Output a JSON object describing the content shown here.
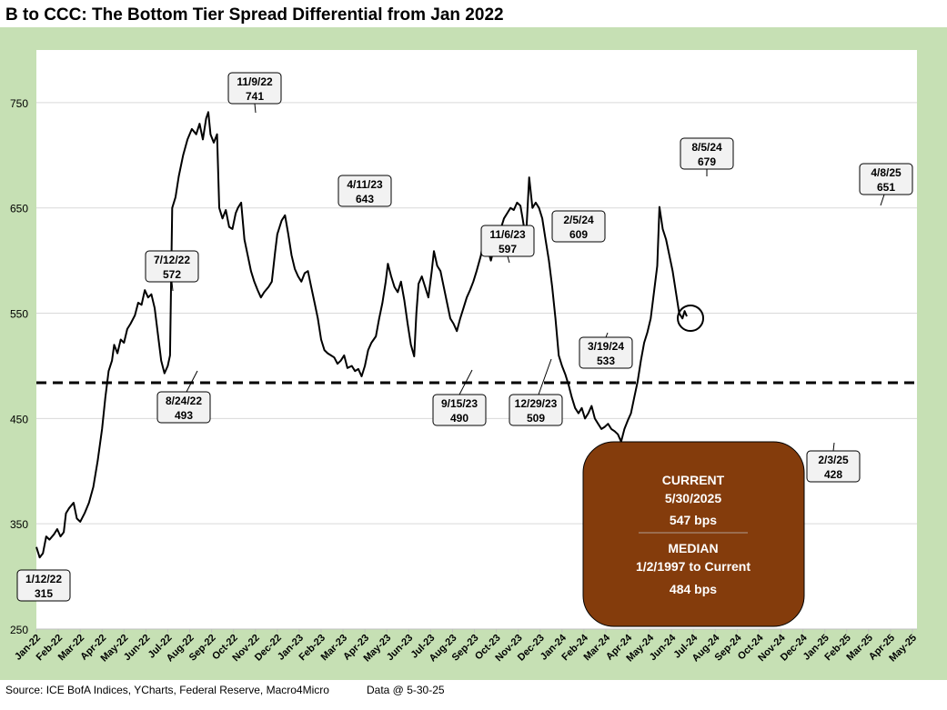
{
  "title": "B to CCC: The Bottom Tier Spread Differential from Jan 2022",
  "footer": {
    "source": "Source: ICE BofA Indices, YCharts, Federal Reserve, Macro4Micro",
    "data_date": "Data @ 5-30-25"
  },
  "info_box": {
    "current_label": "CURRENT",
    "current_date": "5/30/2025",
    "current_value": "547 bps",
    "median_label": "MEDIAN",
    "median_range": "1/2/1997 to Current",
    "median_value": "484 bps"
  },
  "colors": {
    "frame": "#c6e0b4",
    "line": "#000000",
    "grid": "#d9d9d9",
    "box": "#843c0c",
    "callout": "#f2f2f2"
  },
  "chart_data": {
    "type": "line",
    "title": "B to CCC: The Bottom Tier Spread Differential from Jan 2022",
    "xlabel": "",
    "ylabel": "",
    "ylim": [
      250,
      800
    ],
    "y_ticks": [
      250,
      350,
      450,
      550,
      650,
      750
    ],
    "x_ticks": [
      "Jan-22",
      "Feb-22",
      "Mar-22",
      "Apr-22",
      "May-22",
      "Jun-22",
      "Jul-22",
      "Aug-22",
      "Sep-22",
      "Oct-22",
      "Nov-22",
      "Dec-22",
      "Jan-23",
      "Feb-23",
      "Mar-23",
      "Apr-23",
      "May-23",
      "Jun-23",
      "Jul-23",
      "Aug-23",
      "Sep-23",
      "Oct-23",
      "Nov-23",
      "Dec-23",
      "Jan-24",
      "Feb-24",
      "Mar-24",
      "Apr-24",
      "May-24",
      "Jun-24",
      "Jul-24",
      "Aug-24",
      "Sep-24",
      "Oct-24",
      "Nov-24",
      "Dec-24",
      "Jan-25",
      "Feb-25",
      "Mar-25",
      "Apr-25",
      "May-25"
    ],
    "median": 484,
    "current": {
      "date": "5/30/2025",
      "value": 547
    },
    "series": [
      {
        "name": "B to CCC spread differential (bps)",
        "points": [
          [
            0.0,
            328
          ],
          [
            0.15,
            318
          ],
          [
            0.3,
            322
          ],
          [
            0.45,
            338
          ],
          [
            0.6,
            335
          ],
          [
            0.8,
            340
          ],
          [
            0.95,
            345
          ],
          [
            1.1,
            338
          ],
          [
            1.25,
            342
          ],
          [
            1.35,
            360
          ],
          [
            1.5,
            365
          ],
          [
            1.7,
            370
          ],
          [
            1.85,
            355
          ],
          [
            2.0,
            352
          ],
          [
            2.2,
            360
          ],
          [
            2.4,
            370
          ],
          [
            2.6,
            385
          ],
          [
            2.8,
            410
          ],
          [
            3.0,
            440
          ],
          [
            3.15,
            470
          ],
          [
            3.3,
            495
          ],
          [
            3.45,
            505
          ],
          [
            3.55,
            520
          ],
          [
            3.7,
            512
          ],
          [
            3.85,
            525
          ],
          [
            4.0,
            522
          ],
          [
            4.15,
            535
          ],
          [
            4.3,
            540
          ],
          [
            4.5,
            548
          ],
          [
            4.65,
            560
          ],
          [
            4.8,
            558
          ],
          [
            4.95,
            572
          ],
          [
            5.1,
            565
          ],
          [
            5.25,
            568
          ],
          [
            5.4,
            555
          ],
          [
            5.55,
            530
          ],
          [
            5.7,
            505
          ],
          [
            5.85,
            493
          ],
          [
            6.0,
            500
          ],
          [
            6.1,
            510
          ],
          [
            6.2,
            650
          ],
          [
            6.35,
            660
          ],
          [
            6.5,
            680
          ],
          [
            6.7,
            700
          ],
          [
            6.9,
            715
          ],
          [
            7.1,
            725
          ],
          [
            7.3,
            720
          ],
          [
            7.45,
            730
          ],
          [
            7.6,
            715
          ],
          [
            7.75,
            735
          ],
          [
            7.85,
            741
          ],
          [
            7.95,
            720
          ],
          [
            8.1,
            712
          ],
          [
            8.25,
            720
          ],
          [
            8.35,
            650
          ],
          [
            8.5,
            640
          ],
          [
            8.65,
            648
          ],
          [
            8.8,
            632
          ],
          [
            8.95,
            630
          ],
          [
            9.1,
            645
          ],
          [
            9.2,
            650
          ],
          [
            9.35,
            655
          ],
          [
            9.5,
            620
          ],
          [
            9.65,
            605
          ],
          [
            9.8,
            590
          ],
          [
            9.95,
            580
          ],
          [
            10.1,
            572
          ],
          [
            10.25,
            565
          ],
          [
            10.4,
            570
          ],
          [
            10.6,
            575
          ],
          [
            10.75,
            580
          ],
          [
            10.9,
            608
          ],
          [
            11.0,
            625
          ],
          [
            11.2,
            638
          ],
          [
            11.35,
            643
          ],
          [
            11.5,
            625
          ],
          [
            11.65,
            605
          ],
          [
            11.8,
            592
          ],
          [
            11.95,
            585
          ],
          [
            12.1,
            580
          ],
          [
            12.25,
            588
          ],
          [
            12.4,
            590
          ],
          [
            12.55,
            575
          ],
          [
            12.7,
            560
          ],
          [
            12.85,
            545
          ],
          [
            13.0,
            525
          ],
          [
            13.15,
            515
          ],
          [
            13.3,
            512
          ],
          [
            13.45,
            510
          ],
          [
            13.6,
            508
          ],
          [
            13.75,
            502
          ],
          [
            13.9,
            505
          ],
          [
            14.05,
            510
          ],
          [
            14.2,
            498
          ],
          [
            14.4,
            500
          ],
          [
            14.55,
            495
          ],
          [
            14.7,
            497
          ],
          [
            14.85,
            490
          ],
          [
            15.0,
            500
          ],
          [
            15.15,
            515
          ],
          [
            15.3,
            522
          ],
          [
            15.5,
            528
          ],
          [
            15.65,
            545
          ],
          [
            15.8,
            560
          ],
          [
            15.95,
            580
          ],
          [
            16.05,
            597
          ],
          [
            16.2,
            585
          ],
          [
            16.35,
            575
          ],
          [
            16.5,
            570
          ],
          [
            16.65,
            580
          ],
          [
            16.8,
            562
          ],
          [
            16.95,
            540
          ],
          [
            17.1,
            520
          ],
          [
            17.25,
            509
          ],
          [
            17.35,
            550
          ],
          [
            17.45,
            578
          ],
          [
            17.6,
            585
          ],
          [
            17.75,
            575
          ],
          [
            17.9,
            565
          ],
          [
            18.05,
            590
          ],
          [
            18.15,
            609
          ],
          [
            18.3,
            595
          ],
          [
            18.45,
            590
          ],
          [
            18.6,
            575
          ],
          [
            18.75,
            560
          ],
          [
            18.9,
            545
          ],
          [
            19.05,
            540
          ],
          [
            19.2,
            533
          ],
          [
            19.35,
            545
          ],
          [
            19.5,
            555
          ],
          [
            19.65,
            565
          ],
          [
            19.8,
            572
          ],
          [
            19.95,
            580
          ],
          [
            20.1,
            590
          ],
          [
            20.3,
            605
          ],
          [
            20.45,
            625
          ],
          [
            20.6,
            612
          ],
          [
            20.75,
            600
          ],
          [
            20.9,
            612
          ],
          [
            21.05,
            620
          ],
          [
            21.2,
            630
          ],
          [
            21.35,
            640
          ],
          [
            21.5,
            645
          ],
          [
            21.65,
            650
          ],
          [
            21.8,
            648
          ],
          [
            21.95,
            655
          ],
          [
            22.1,
            652
          ],
          [
            22.2,
            640
          ],
          [
            22.35,
            620
          ],
          [
            22.5,
            679
          ],
          [
            22.65,
            650
          ],
          [
            22.8,
            655
          ],
          [
            22.95,
            650
          ],
          [
            23.1,
            640
          ],
          [
            23.25,
            620
          ],
          [
            23.4,
            600
          ],
          [
            23.55,
            575
          ],
          [
            23.7,
            545
          ],
          [
            23.85,
            510
          ],
          [
            24.0,
            500
          ],
          [
            24.15,
            492
          ],
          [
            24.3,
            482
          ],
          [
            24.45,
            470
          ],
          [
            24.6,
            460
          ],
          [
            24.75,
            455
          ],
          [
            24.9,
            460
          ],
          [
            25.05,
            450
          ],
          [
            25.2,
            455
          ],
          [
            25.35,
            462
          ],
          [
            25.5,
            450
          ],
          [
            25.65,
            445
          ],
          [
            25.8,
            440
          ],
          [
            25.95,
            442
          ],
          [
            26.1,
            445
          ],
          [
            26.25,
            440
          ],
          [
            26.4,
            438
          ],
          [
            26.55,
            435
          ],
          [
            26.7,
            428
          ],
          [
            26.85,
            440
          ],
          [
            27.0,
            448
          ],
          [
            27.15,
            455
          ],
          [
            27.3,
            470
          ],
          [
            27.45,
            485
          ],
          [
            27.6,
            505
          ],
          [
            27.75,
            522
          ],
          [
            27.9,
            532
          ],
          [
            28.05,
            545
          ],
          [
            28.2,
            570
          ],
          [
            28.35,
            595
          ],
          [
            28.45,
            651
          ],
          [
            28.6,
            630
          ],
          [
            28.75,
            620
          ],
          [
            28.9,
            605
          ],
          [
            29.05,
            590
          ],
          [
            29.2,
            570
          ],
          [
            29.35,
            550
          ],
          [
            29.5,
            545
          ],
          [
            29.6,
            552
          ],
          [
            29.7,
            547
          ]
        ]
      }
    ],
    "annotations": [
      {
        "date": "1/12/22",
        "value": "315"
      },
      {
        "date": "7/12/22",
        "value": "572"
      },
      {
        "date": "8/24/22",
        "value": "493"
      },
      {
        "date": "11/9/22",
        "value": "741"
      },
      {
        "date": "4/11/23",
        "value": "643"
      },
      {
        "date": "9/15/23",
        "value": "490"
      },
      {
        "date": "11/6/23",
        "value": "597"
      },
      {
        "date": "12/29/23",
        "value": "509"
      },
      {
        "date": "2/5/24",
        "value": "609"
      },
      {
        "date": "3/19/24",
        "value": "533"
      },
      {
        "date": "8/5/24",
        "value": "679"
      },
      {
        "date": "2/3/25",
        "value": "428"
      },
      {
        "date": "4/8/25",
        "value": "651"
      }
    ]
  }
}
